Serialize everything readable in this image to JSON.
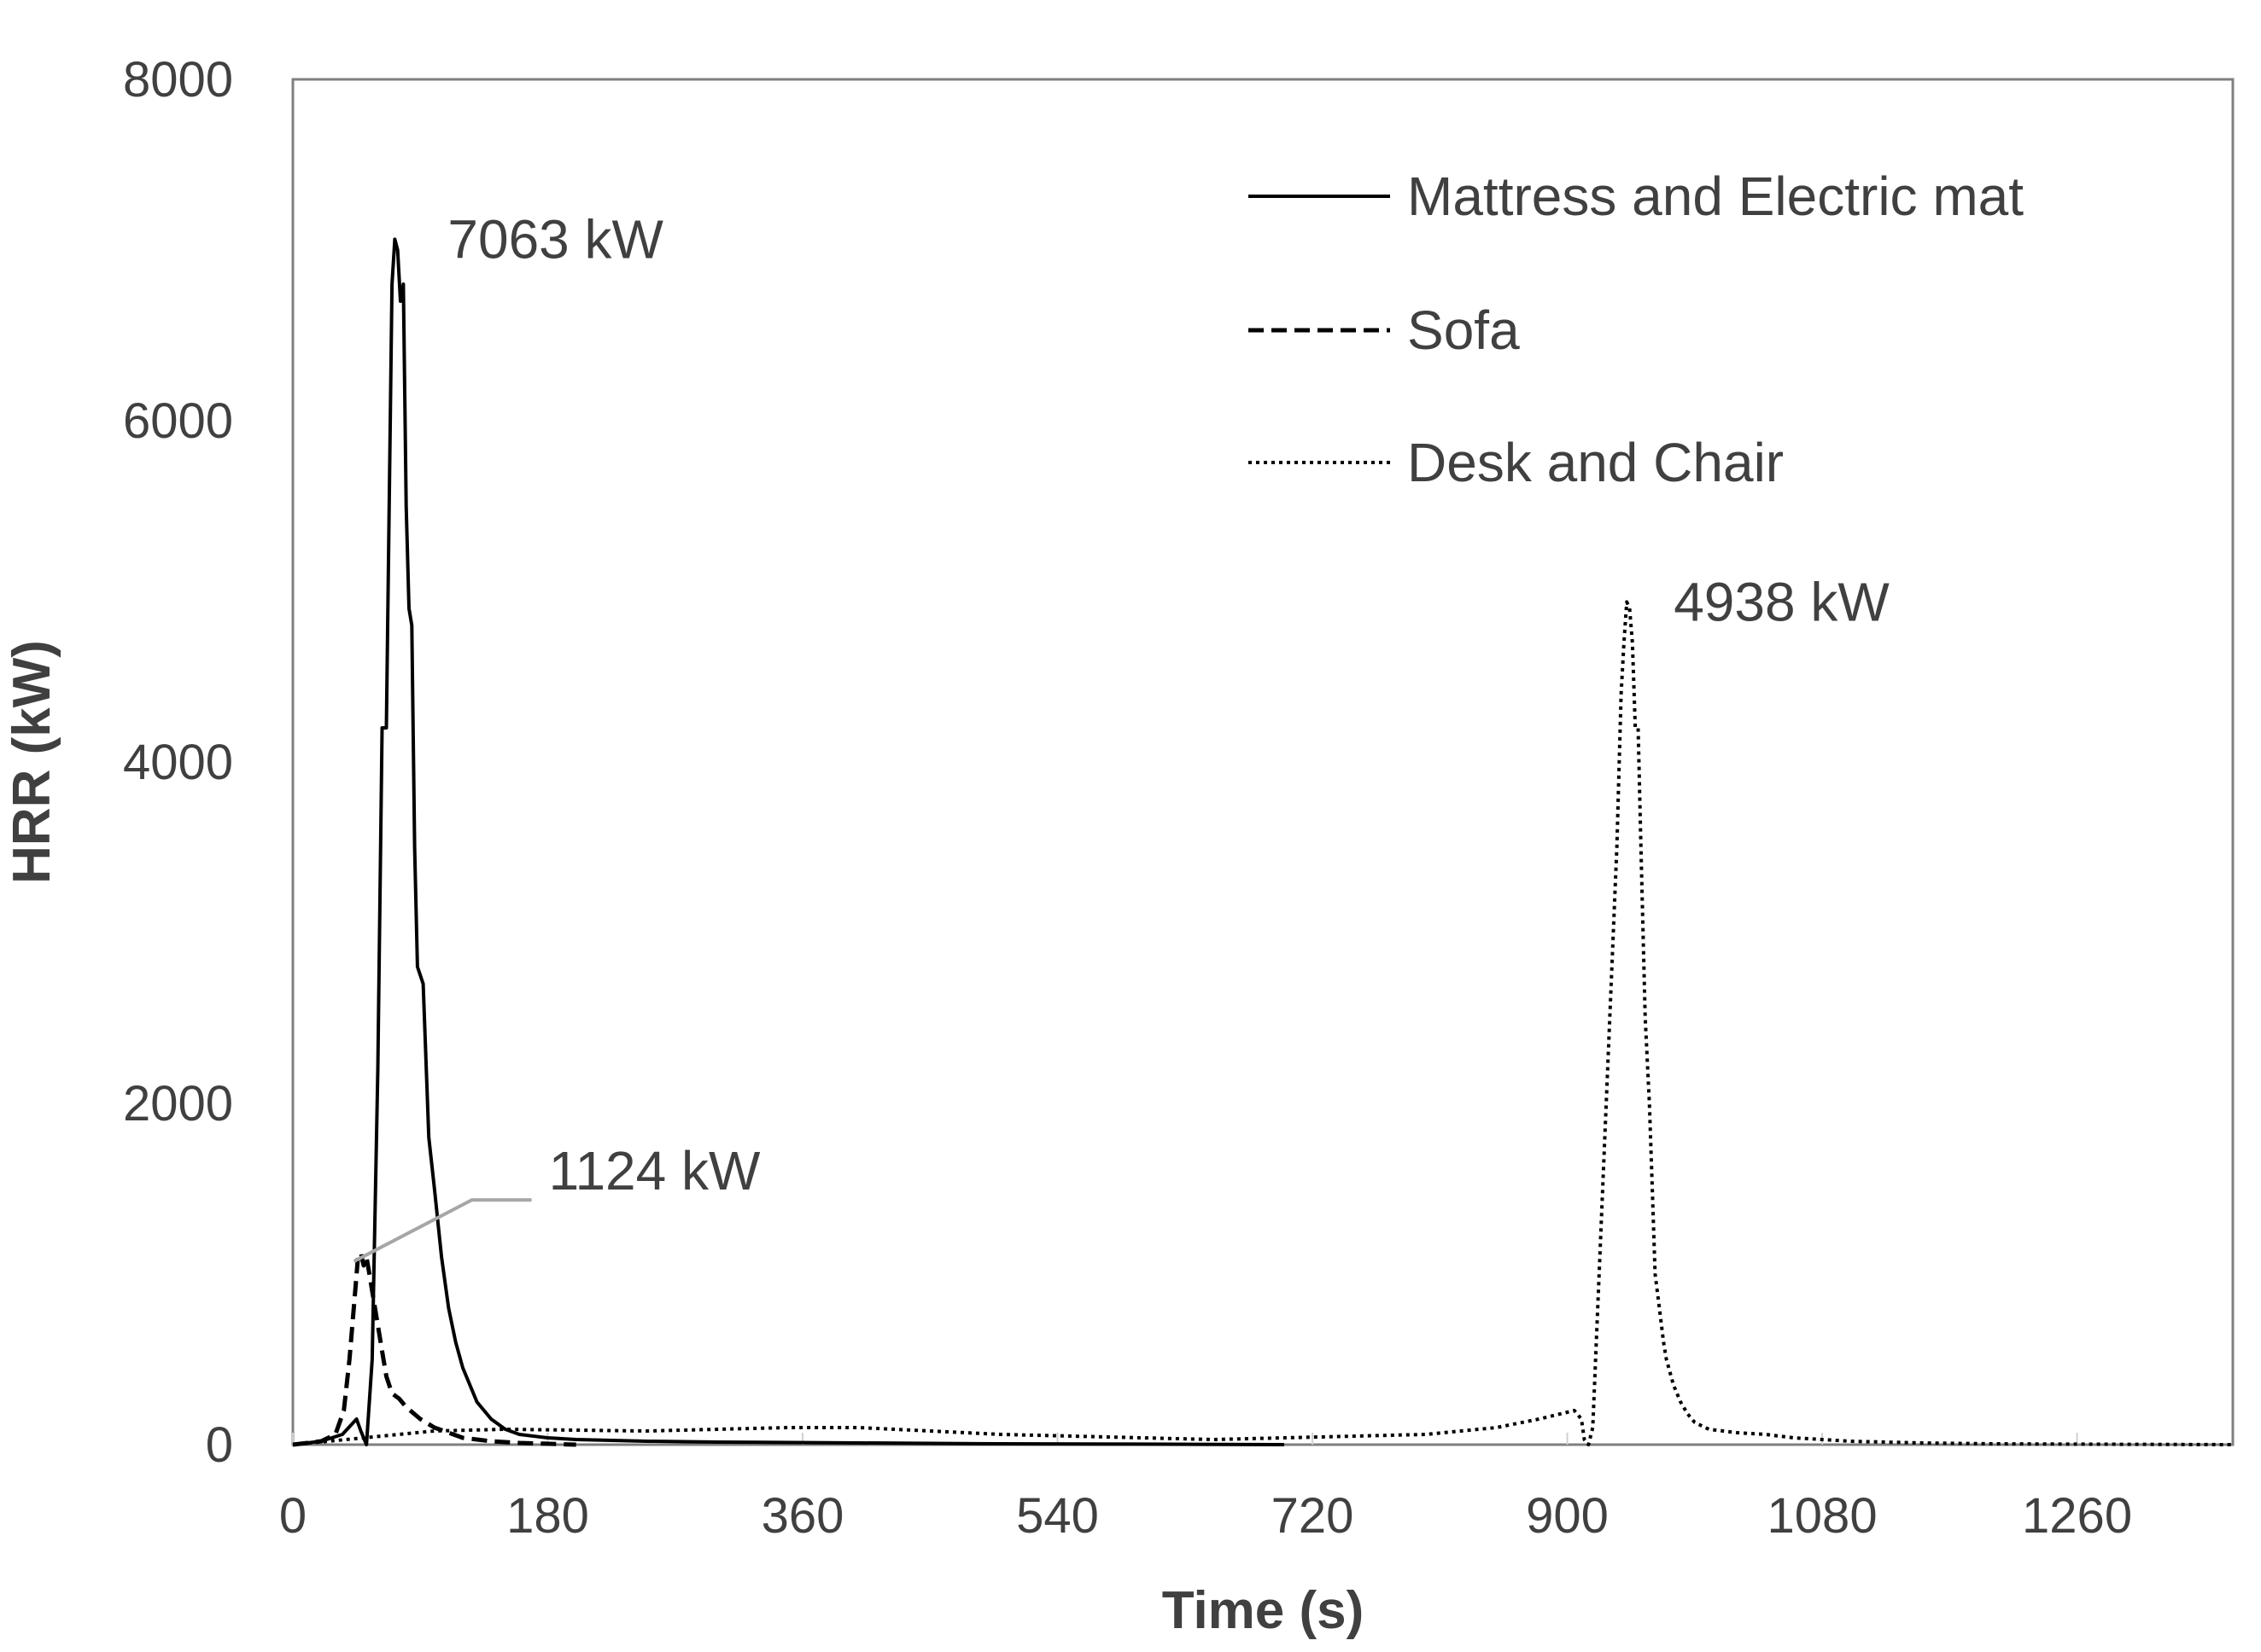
{
  "chart_data": {
    "type": "line",
    "title": "",
    "xlabel": "Time (s)",
    "ylabel": "HRR (kW)",
    "xlim": [
      0,
      1370
    ],
    "ylim": [
      0,
      8000
    ],
    "xticks": [
      0,
      180,
      360,
      540,
      720,
      900,
      1080,
      1260
    ],
    "yticks": [
      0,
      2000,
      4000,
      6000,
      8000
    ],
    "grid": false,
    "legend_position": "top-right",
    "colors": {
      "series": "#000000",
      "text": "#404040",
      "frame": "#7f7f7f",
      "leader": "#a6a6a6"
    },
    "series": [
      {
        "name": "Mattress and Electric mat",
        "style": "solid",
        "x": [
          0,
          20,
          35,
          45,
          48,
          52,
          56,
          60,
          63,
          66,
          68,
          70,
          72,
          74,
          76,
          78,
          80,
          82,
          84,
          86,
          88,
          92,
          96,
          100,
          105,
          110,
          115,
          120,
          130,
          140,
          150,
          160,
          180,
          200,
          250,
          300,
          400,
          500,
          600,
          700
        ],
        "y": [
          0,
          20,
          60,
          150,
          80,
          0,
          500,
          2200,
          4200,
          4200,
          5500,
          6800,
          7063,
          7000,
          6700,
          6800,
          5500,
          4900,
          4800,
          3500,
          2800,
          2700,
          1800,
          1500,
          1100,
          800,
          600,
          450,
          250,
          150,
          90,
          60,
          40,
          30,
          20,
          15,
          10,
          5,
          3,
          0
        ]
      },
      {
        "name": "Sofa",
        "style": "dashed",
        "x": [
          0,
          20,
          30,
          36,
          40,
          44,
          46,
          48,
          50,
          52,
          54,
          56,
          58,
          60,
          62,
          64,
          66,
          70,
          75,
          80,
          90,
          100,
          110,
          120,
          140,
          160,
          200
        ],
        "y": [
          0,
          20,
          60,
          200,
          500,
          900,
          1100,
          1124,
          1050,
          1100,
          1000,
          900,
          800,
          700,
          600,
          500,
          400,
          300,
          270,
          220,
          150,
          100,
          70,
          40,
          20,
          10,
          0
        ]
      },
      {
        "name": "Desk and Chair",
        "style": "dotted",
        "x": [
          0,
          50,
          100,
          150,
          200,
          250,
          300,
          350,
          400,
          450,
          500,
          550,
          600,
          650,
          700,
          750,
          800,
          850,
          880,
          900,
          905,
          910,
          912,
          915,
          918,
          920,
          925,
          930,
          935,
          938,
          940,
          942,
          944,
          946,
          948,
          950,
          952,
          955,
          958,
          960,
          962,
          965,
          968,
          970,
          975,
          980,
          985,
          990,
          1000,
          1020,
          1040,
          1060,
          1080,
          1100,
          1150,
          1200,
          1260,
          1370
        ],
        "y": [
          0,
          40,
          80,
          90,
          85,
          80,
          90,
          100,
          100,
          80,
          60,
          50,
          40,
          30,
          40,
          50,
          60,
          100,
          150,
          190,
          200,
          150,
          30,
          0,
          100,
          500,
          1500,
          2500,
          3500,
          4400,
          4700,
          4938,
          4900,
          4700,
          4200,
          4200,
          3500,
          2500,
          2000,
          1500,
          1000,
          800,
          600,
          500,
          350,
          250,
          180,
          130,
          90,
          70,
          60,
          40,
          30,
          20,
          10,
          5,
          3,
          0
        ]
      }
    ],
    "annotations": [
      {
        "text": "7063 kW",
        "x": 72,
        "y": 7063
      },
      {
        "text": "1124 kW",
        "x": 48,
        "y": 1124
      },
      {
        "text": "4938 kW",
        "x": 942,
        "y": 4938
      }
    ]
  }
}
